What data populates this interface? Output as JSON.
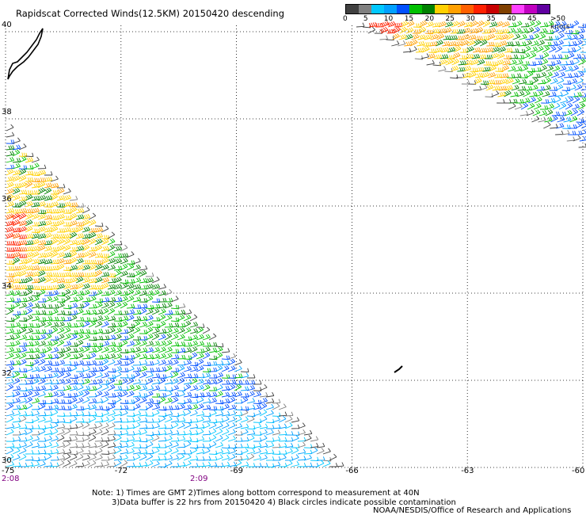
{
  "title": "Rapidscat Corrected Winds(12.5KM) 20150420 descending",
  "legend": {
    "colors": [
      "#404040",
      "#808080",
      "#00c8ff",
      "#00a0ff",
      "#0050ff",
      "#00c000",
      "#008000",
      "#ffd000",
      "#ffa000",
      "#ff6000",
      "#ff2000",
      "#c80000",
      "#804000",
      "#ff40ff",
      "#c000c0",
      "#6000a0"
    ],
    "labels": [
      {
        "text": "0",
        "value": 0
      },
      {
        "text": "5",
        "value": 5
      },
      {
        "text": "10",
        "value": 10
      },
      {
        "text": "15",
        "value": 15
      },
      {
        "text": "20",
        "value": 20
      },
      {
        "text": "25",
        "value": 25
      },
      {
        "text": "30",
        "value": 30
      },
      {
        "text": "35",
        "value": 35
      },
      {
        "text": "40",
        "value": 40
      },
      {
        "text": "45",
        "value": 45
      },
      {
        "text": ">50 knots",
        "value": 50
      }
    ]
  },
  "axes": {
    "lat_labels": [
      {
        "text": "40",
        "value": 40
      },
      {
        "text": "38",
        "value": 38
      },
      {
        "text": "36",
        "value": 36
      },
      {
        "text": "34",
        "value": 34
      },
      {
        "text": "32",
        "value": 32
      },
      {
        "text": "30",
        "value": 30
      }
    ],
    "lon_labels": [
      {
        "text": "-75",
        "value": -75
      },
      {
        "text": "-72",
        "value": -72
      },
      {
        "text": "-69",
        "value": -69
      },
      {
        "text": "-66",
        "value": -66
      },
      {
        "text": "-63",
        "value": -63
      },
      {
        "text": "-60",
        "value": -60
      }
    ],
    "lat_range": [
      30,
      40
    ],
    "lon_range": [
      -75,
      -60
    ],
    "grid": true
  },
  "times": [
    {
      "text": "2:08",
      "lon": -75
    },
    {
      "text": "2:09",
      "lon": -70
    }
  ],
  "note": {
    "line1": "Note: 1) Times are GMT 2)Times along bottom correspond to measurement at 40N",
    "line2": "3)Data buffer is 22 hrs from 20150420 4) Black circles indicate possible contamination"
  },
  "credit": "NOAA/NESDIS/Office of Research and Applications"
}
